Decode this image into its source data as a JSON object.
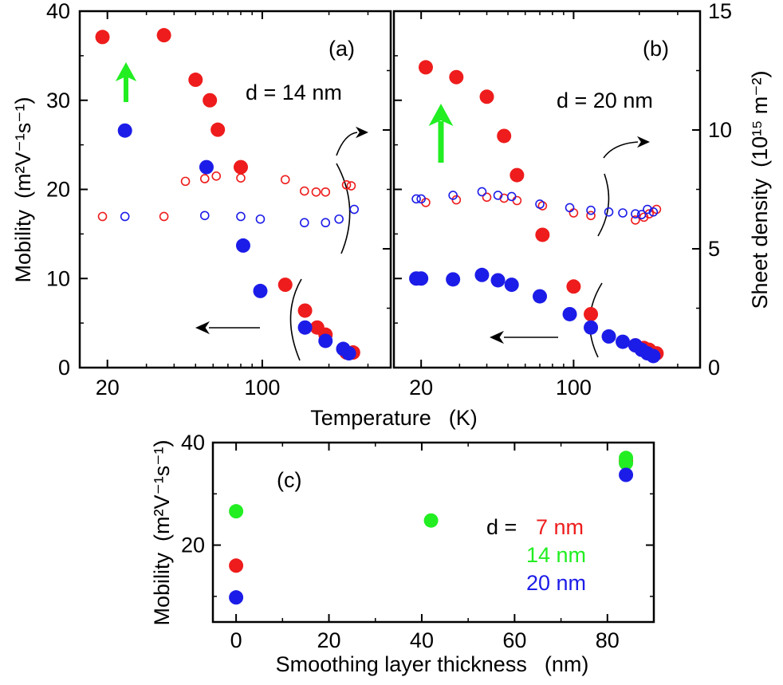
{
  "colors": {
    "red": "#ee1c1c",
    "blue": "#1c1ce8",
    "green": "#22ee22",
    "black": "#000000"
  },
  "labels": {
    "mobility_left": "Mobility",
    "mobility_left_units": "(m²V⁻¹s⁻¹)",
    "sheet_density": "Sheet density",
    "sheet_density_units": "(10¹⁵ m⁻²)",
    "temperature": "Temperature",
    "temperature_units": "(K)",
    "mobility_c": "Mobility",
    "mobility_c_units": "(m²V⁻¹s⁻¹)",
    "smoothing": "Smoothing layer thickness",
    "smoothing_units": "(nm)",
    "d_prefix": "d ="
  },
  "chart_data": [
    {
      "id": "a",
      "type": "scatter",
      "panel_label": "(a)",
      "annotation": "d = 14 nm",
      "xscale": "log",
      "xlim": [
        15,
        380
      ],
      "xticks": [
        {
          "value": 20,
          "label": "20"
        },
        {
          "value": 100,
          "label": "100"
        }
      ],
      "xlabel": "Temperature (K)",
      "ylabel": "Mobility (m²V⁻¹s⁻¹)",
      "ylim": [
        0,
        40
      ],
      "yticks": [
        0,
        10,
        20,
        30,
        40
      ],
      "y2lim": [
        0,
        15
      ],
      "series": [
        {
          "name": "mobility red",
          "color": "red",
          "filled": true,
          "axis": "y",
          "x": [
            19,
            36,
            50,
            58,
            63,
            80,
            127,
            156,
            177,
            193,
            240,
            257
          ],
          "y": [
            37.1,
            37.3,
            32.3,
            30.0,
            26.7,
            22.5,
            9.3,
            6.4,
            4.5,
            3.7,
            1.7,
            1.7
          ]
        },
        {
          "name": "mobility blue",
          "color": "blue",
          "filled": true,
          "axis": "y",
          "x": [
            24,
            56,
            82,
            98,
            156,
            193,
            232,
            246
          ],
          "y": [
            26.6,
            22.5,
            13.7,
            8.6,
            4.5,
            3.0,
            2.1,
            1.6
          ]
        },
        {
          "name": "sheet density red",
          "color": "red",
          "filled": false,
          "axis": "y2",
          "x": [
            19,
            36,
            45,
            55,
            62,
            80,
            127,
            155,
            175,
            193,
            240,
            252
          ],
          "y": [
            6.36,
            6.36,
            7.84,
            7.95,
            8.06,
            7.98,
            7.91,
            7.43,
            7.39,
            7.39,
            7.69,
            7.65
          ]
        },
        {
          "name": "sheet density blue",
          "color": "blue",
          "filled": false,
          "axis": "y2",
          "x": [
            24,
            55,
            80,
            98,
            155,
            193,
            222,
            260
          ],
          "y": [
            6.36,
            6.4,
            6.36,
            6.25,
            6.1,
            6.1,
            6.25,
            6.66
          ]
        }
      ]
    },
    {
      "id": "b",
      "type": "scatter",
      "panel_label": "(b)",
      "annotation": "d = 20 nm",
      "xscale": "log",
      "xlim": [
        15,
        380
      ],
      "xticks": [
        {
          "value": 20,
          "label": "20"
        },
        {
          "value": 100,
          "label": "100"
        }
      ],
      "ylim": [
        0,
        40
      ],
      "y2lim": [
        0,
        15
      ],
      "y2label": "Sheet density (10¹⁵ m⁻²)",
      "y2ticks": [
        0,
        5,
        10,
        15
      ],
      "series": [
        {
          "name": "mobility red",
          "color": "red",
          "filled": true,
          "axis": "y",
          "x": [
            21,
            29,
            40,
            48,
            55,
            72,
            100,
            120,
            192,
            210,
            222,
            240
          ],
          "y": [
            33.7,
            32.6,
            30.4,
            26.0,
            21.6,
            14.9,
            9.1,
            6.0,
            2.5,
            2.2,
            2.0,
            1.6
          ]
        },
        {
          "name": "mobility blue",
          "color": "blue",
          "filled": true,
          "axis": "y",
          "x": [
            19,
            20,
            28,
            38,
            45,
            52,
            70,
            96,
            120,
            145,
            168,
            192,
            205,
            218,
            232
          ],
          "y": [
            10.0,
            10.0,
            9.9,
            10.4,
            9.8,
            9.3,
            8.0,
            6.0,
            4.5,
            3.5,
            2.9,
            2.5,
            2.0,
            1.6,
            1.3
          ]
        },
        {
          "name": "sheet density red",
          "color": "red",
          "filled": false,
          "axis": "y2",
          "x": [
            21,
            29,
            40,
            48,
            55,
            72,
            100,
            120,
            192,
            210,
            222,
            240
          ],
          "y": [
            6.95,
            7.06,
            7.17,
            7.13,
            7.03,
            6.81,
            6.51,
            6.4,
            6.21,
            6.33,
            6.47,
            6.66
          ]
        },
        {
          "name": "sheet density blue",
          "color": "blue",
          "filled": false,
          "axis": "y2",
          "x": [
            19,
            20,
            28,
            38,
            45,
            52,
            70,
            96,
            120,
            145,
            168,
            192,
            205,
            218,
            232
          ],
          "y": [
            7.1,
            7.1,
            7.25,
            7.4,
            7.25,
            7.2,
            6.88,
            6.73,
            6.62,
            6.55,
            6.51,
            6.47,
            6.44,
            6.66,
            6.55
          ]
        }
      ]
    },
    {
      "id": "c",
      "type": "scatter",
      "panel_label": "(c)",
      "xlim": [
        -5,
        90
      ],
      "xticks": [
        0,
        20,
        40,
        60,
        80
      ],
      "ylim": [
        5,
        40
      ],
      "yticks": [
        20,
        40
      ],
      "xlabel": "Smoothing layer thickness (nm)",
      "ylabel": "Mobility (m²V⁻¹s⁻¹)",
      "legend": [
        {
          "label": "7 nm",
          "color": "red"
        },
        {
          "label": "14 nm",
          "color": "green"
        },
        {
          "label": "20 nm",
          "color": "blue"
        }
      ],
      "series": [
        {
          "name": "7 nm",
          "color": "red",
          "filled": true,
          "x": [
            0,
            84
          ],
          "y": [
            16.0,
            36.4
          ]
        },
        {
          "name": "14 nm",
          "color": "green",
          "filled": true,
          "x": [
            0,
            42,
            84,
            84
          ],
          "y": [
            26.6,
            24.8,
            37.0,
            36.0
          ]
        },
        {
          "name": "20 nm",
          "color": "blue",
          "filled": true,
          "x": [
            0,
            84
          ],
          "y": [
            9.8,
            33.7
          ]
        }
      ]
    }
  ]
}
